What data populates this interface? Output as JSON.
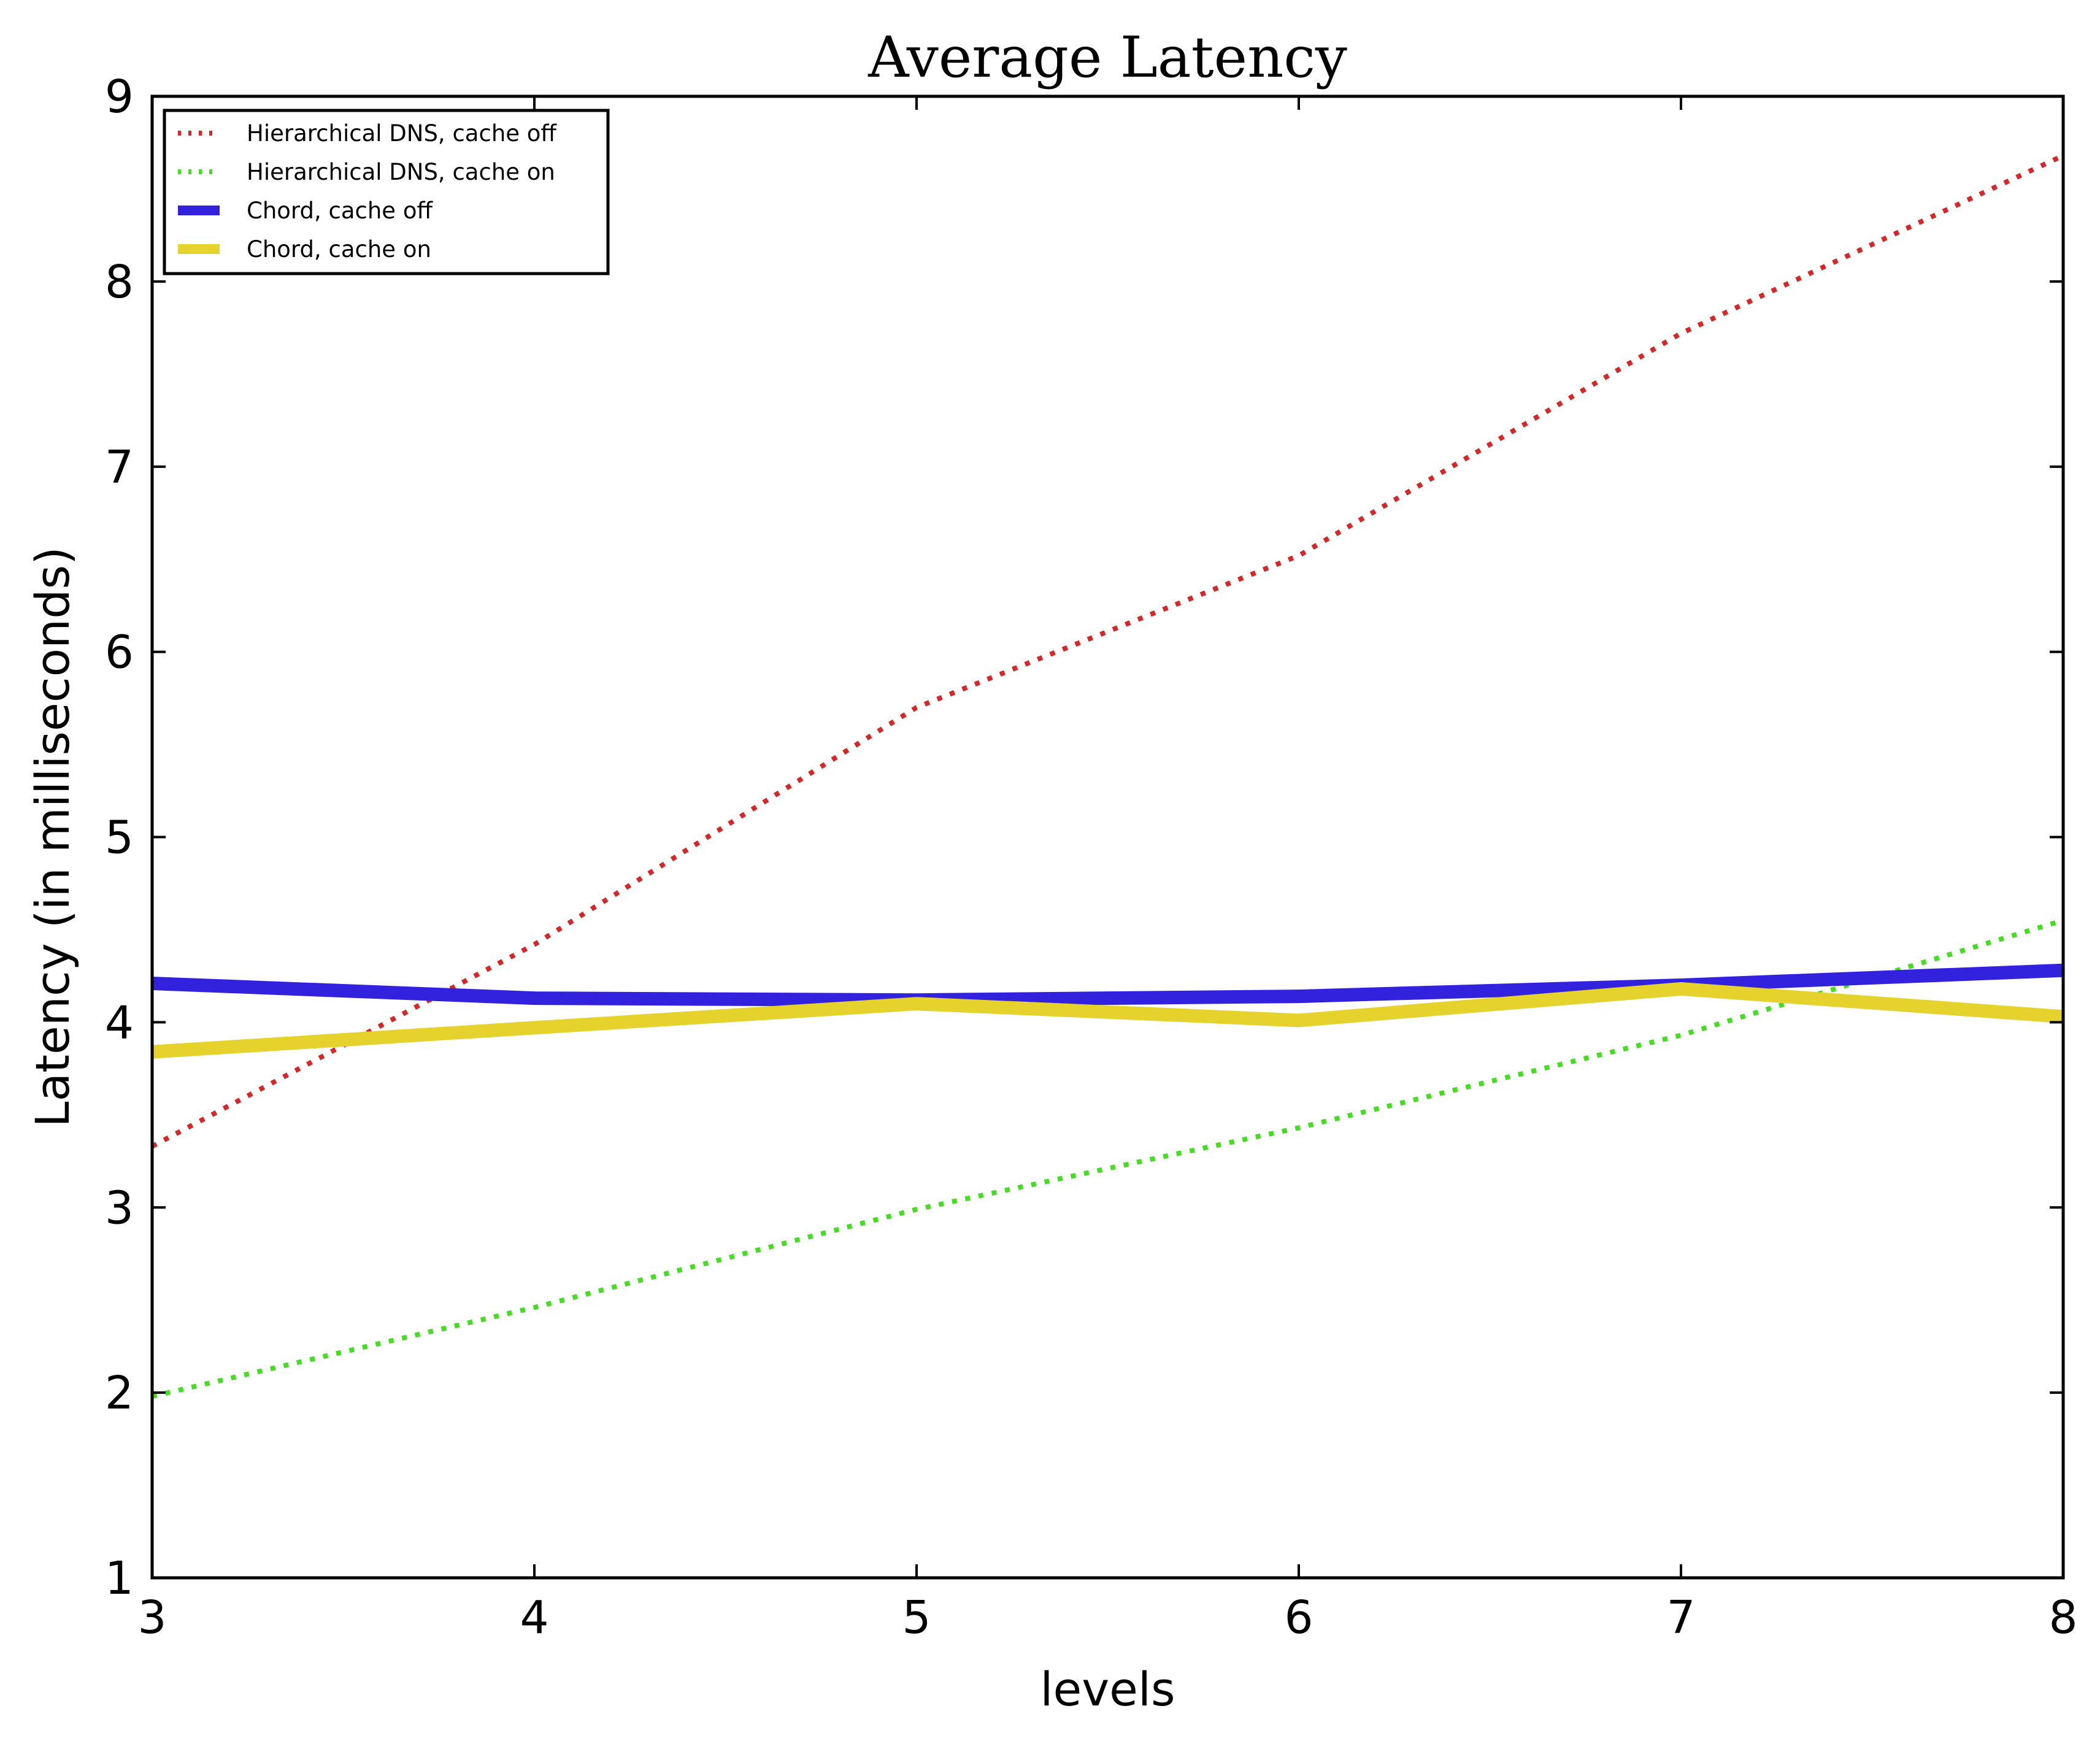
{
  "chart_data": {
    "type": "line",
    "title": "Average Latency",
    "xlabel": "levels",
    "ylabel": "Latency (in milliseconds)",
    "xlim": [
      3,
      8
    ],
    "ylim": [
      1,
      9
    ],
    "x": [
      3,
      4,
      5,
      6,
      7,
      8
    ],
    "xticks": [
      "3",
      "4",
      "5",
      "6",
      "7",
      "8"
    ],
    "yticks": [
      "1",
      "2",
      "3",
      "4",
      "5",
      "6",
      "7",
      "8",
      "9"
    ],
    "grid": false,
    "legend_position": "top-left",
    "series": [
      {
        "name": "Hierarchical DNS, cache off",
        "color": "#d62728",
        "style": "dotted",
        "values": [
          3.33,
          4.42,
          5.7,
          6.52,
          7.72,
          8.68
        ]
      },
      {
        "name": "Hierarchical DNS, cache on",
        "color": "#44dd22",
        "style": "dotted",
        "values": [
          1.98,
          2.46,
          2.99,
          3.43,
          3.93,
          4.55
        ]
      },
      {
        "name": "Chord, cache off",
        "color": "#3322dd",
        "style": "solid",
        "values": [
          4.21,
          4.13,
          4.12,
          4.14,
          4.2,
          4.28
        ]
      },
      {
        "name": "Chord, cache on",
        "color": "#e5d22d",
        "style": "solid",
        "values": [
          3.84,
          3.97,
          4.1,
          4.01,
          4.18,
          4.03
        ]
      }
    ]
  }
}
